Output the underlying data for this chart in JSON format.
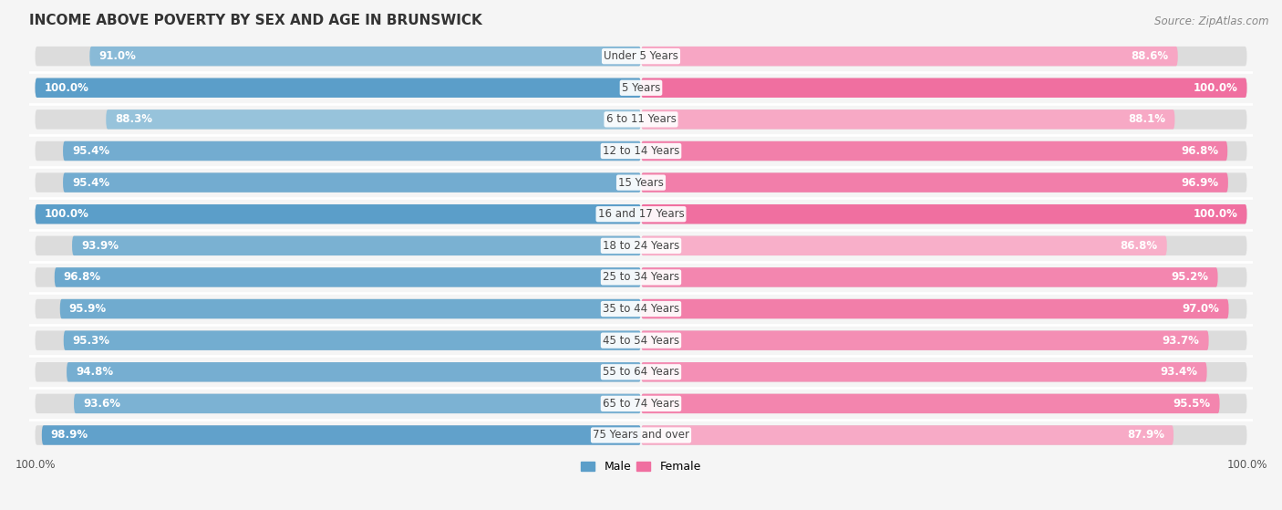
{
  "title": "INCOME ABOVE POVERTY BY SEX AND AGE IN BRUNSWICK",
  "source": "Source: ZipAtlas.com",
  "categories": [
    "Under 5 Years",
    "5 Years",
    "6 to 11 Years",
    "12 to 14 Years",
    "15 Years",
    "16 and 17 Years",
    "18 to 24 Years",
    "25 to 34 Years",
    "35 to 44 Years",
    "45 to 54 Years",
    "55 to 64 Years",
    "65 to 74 Years",
    "75 Years and over"
  ],
  "male_values": [
    91.0,
    100.0,
    88.3,
    95.4,
    95.4,
    100.0,
    93.9,
    96.8,
    95.9,
    95.3,
    94.8,
    93.6,
    98.9
  ],
  "female_values": [
    88.6,
    100.0,
    88.1,
    96.8,
    96.9,
    100.0,
    86.8,
    95.2,
    97.0,
    93.7,
    93.4,
    95.5,
    87.9
  ],
  "male_color_high": "#5b9ec9",
  "male_color_low": "#a8cde0",
  "female_color_high": "#f06fa0",
  "female_color_low": "#f9b8cf",
  "male_label": "Male",
  "female_label": "Female",
  "axis_max": 100.0,
  "bar_height": 0.62,
  "bg_color": "#f5f5f5",
  "bar_bg_color": "#dcdcdc",
  "title_fontsize": 11,
  "label_fontsize": 8.5,
  "cat_fontsize": 8.5,
  "source_fontsize": 8.5
}
